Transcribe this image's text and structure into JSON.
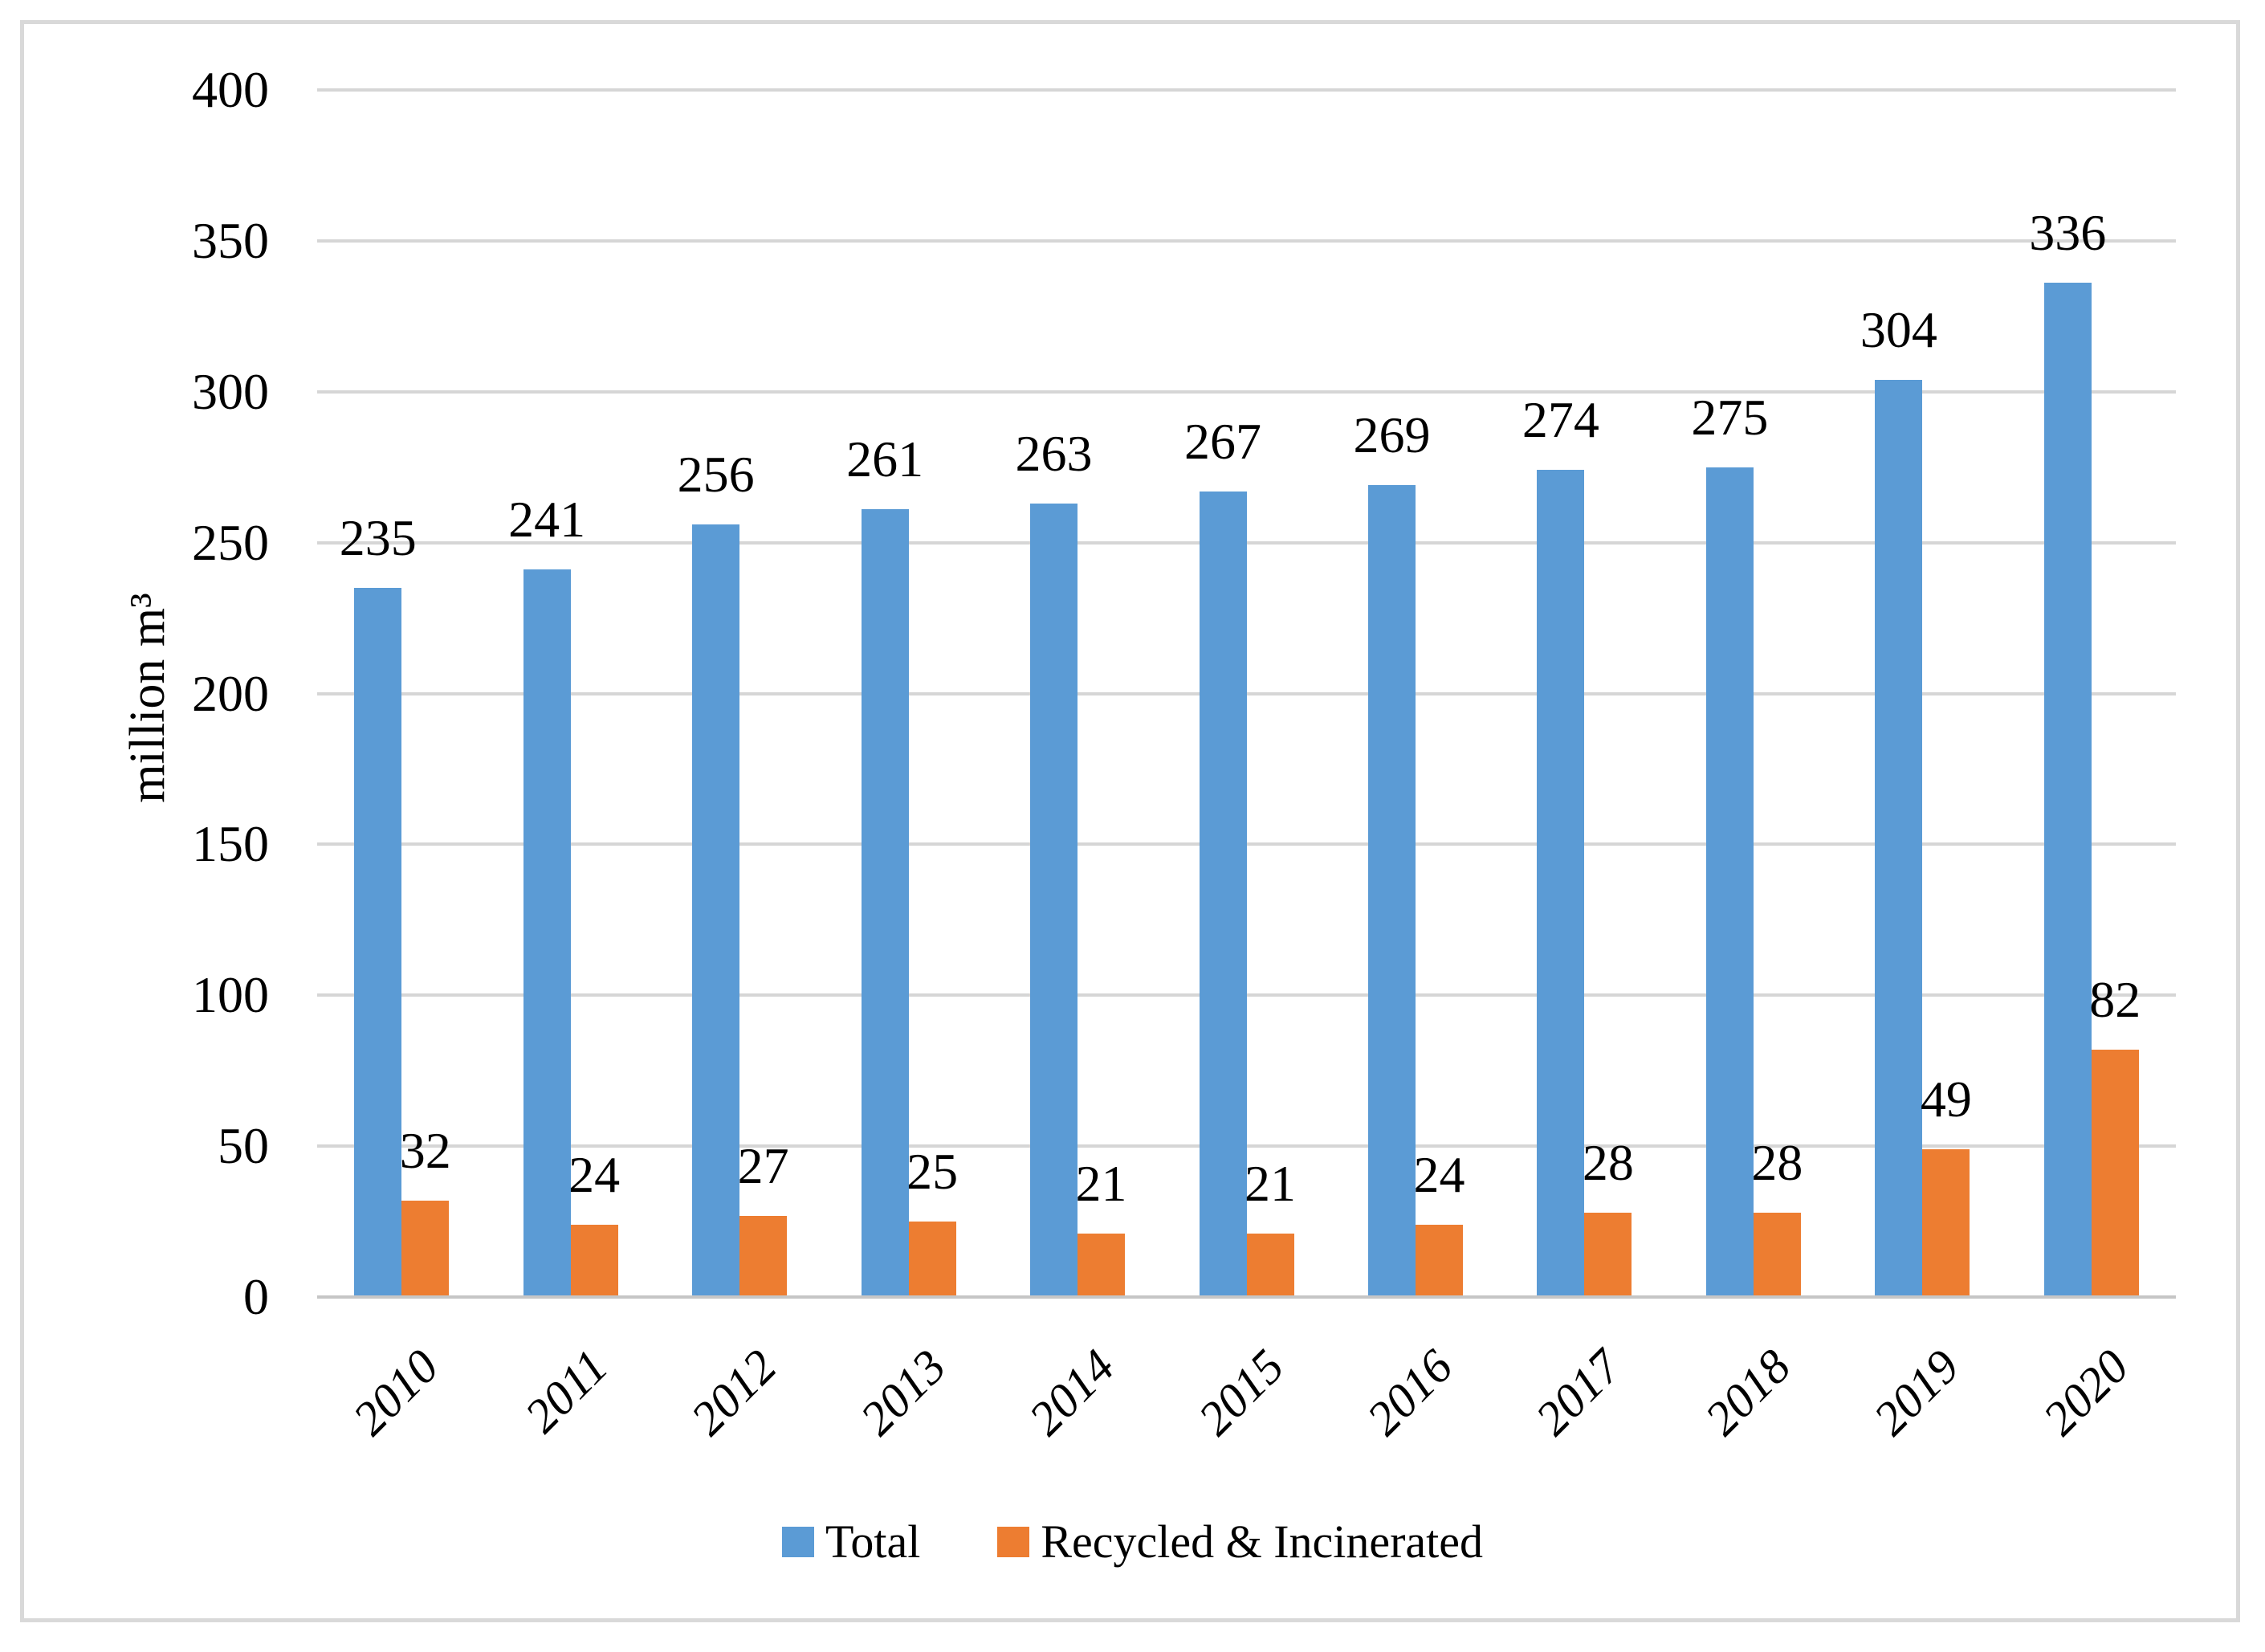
{
  "page": {
    "background": "#ffffff",
    "frame_border_color": "#d9d9d9"
  },
  "chart_data": {
    "type": "bar",
    "title": "",
    "categories": [
      "2010",
      "2011",
      "2012",
      "2013",
      "2014",
      "2015",
      "2016",
      "2017",
      "2018",
      "2019",
      "2020"
    ],
    "series": [
      {
        "name": "Total",
        "color": "#5b9bd5",
        "values": [
          235,
          241,
          256,
          261,
          263,
          267,
          269,
          274,
          275,
          304,
          336
        ]
      },
      {
        "name": "Recycled & Incinerated",
        "color": "#ed7d31",
        "values": [
          32,
          24,
          27,
          25,
          21,
          21,
          24,
          28,
          28,
          49,
          82
        ]
      }
    ],
    "xlabel": "",
    "ylabel": "million m³",
    "ylim": [
      0,
      400
    ],
    "yticks": [
      0,
      50,
      100,
      150,
      200,
      250,
      300,
      350,
      400
    ],
    "grid": true,
    "grid_color": "#d6d6d6",
    "axis_line_color": "#c6c6c6",
    "text_color": "#000000",
    "legend_position": "bottom",
    "data_labels": true
  }
}
